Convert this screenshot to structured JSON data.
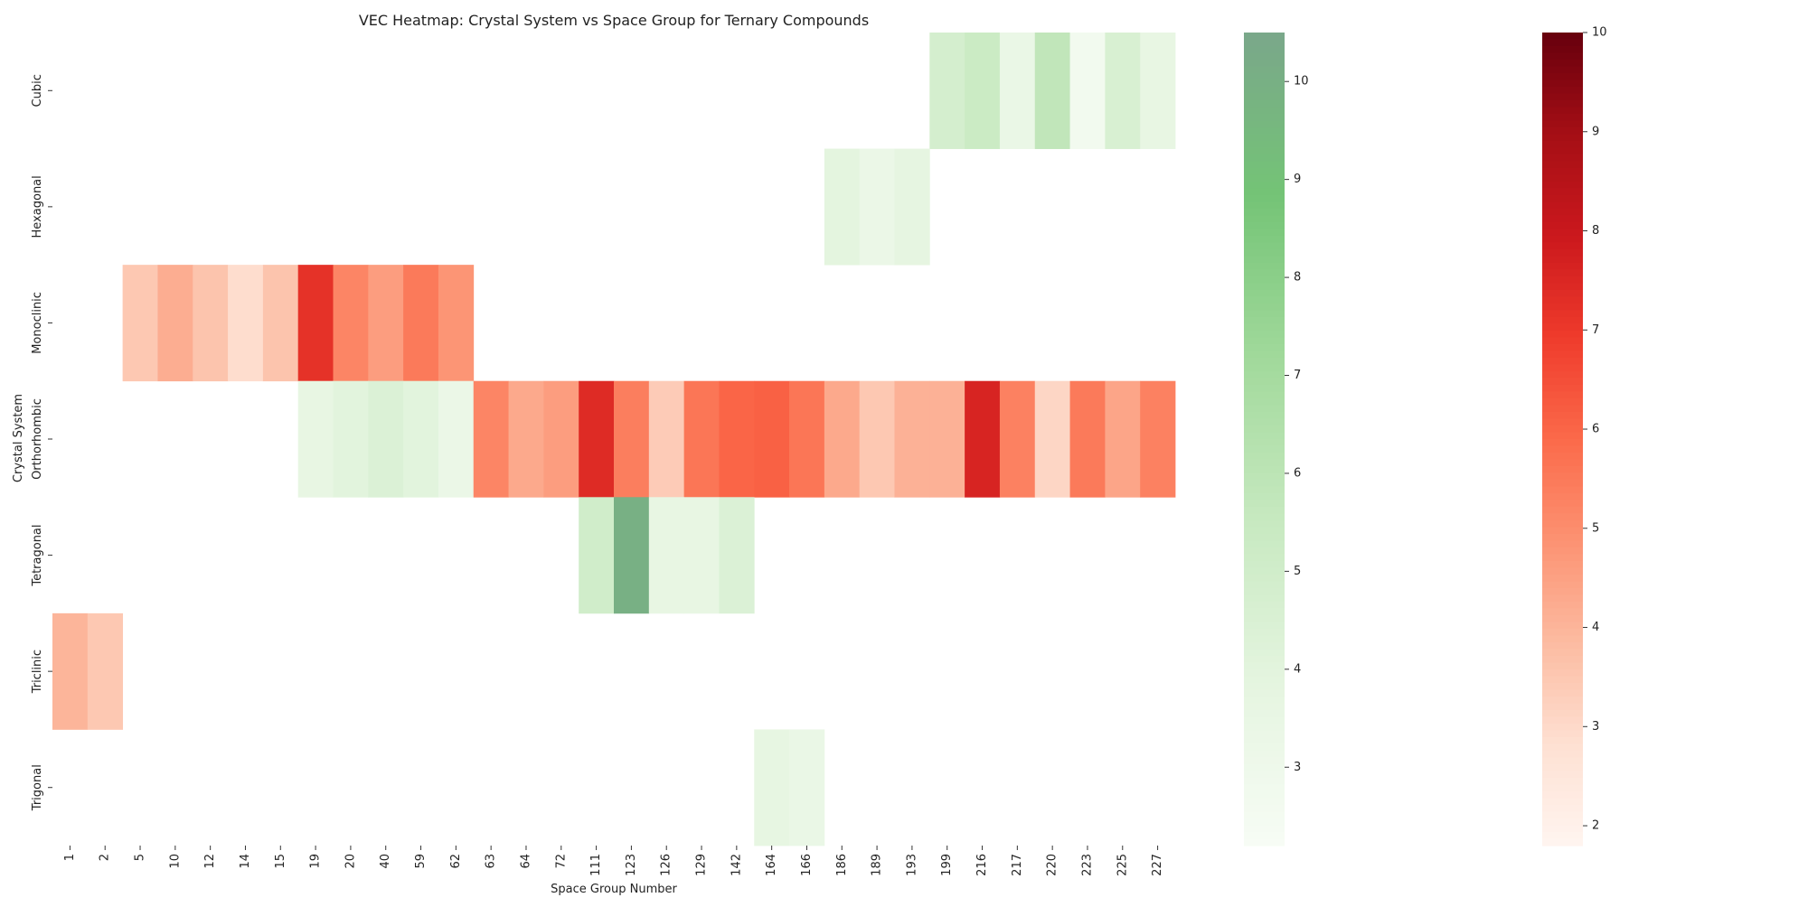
{
  "chart_data": {
    "type": "heatmap",
    "title": "VEC Heatmap: Crystal System vs Space Group for Ternary Compounds",
    "xlabel": "Space Group Number",
    "ylabel": "Crystal System",
    "x_categories": [
      "1",
      "2",
      "5",
      "10",
      "12",
      "14",
      "15",
      "19",
      "20",
      "40",
      "59",
      "62",
      "63",
      "64",
      "72",
      "111",
      "123",
      "126",
      "129",
      "142",
      "164",
      "166",
      "186",
      "189",
      "193",
      "199",
      "216",
      "217",
      "220",
      "223",
      "225",
      "227"
    ],
    "y_categories": [
      "Cubic",
      "Hexagonal",
      "Monoclinic",
      "Orthorhombic",
      "Tetragonal",
      "Triclinic",
      "Trigonal"
    ],
    "series": [
      {
        "name": "Cubic",
        "colormap": "green",
        "cells": [
          {
            "x": "199",
            "value": 4.8
          },
          {
            "x": "216",
            "value": 5.3
          },
          {
            "x": "217",
            "value": 3.4
          },
          {
            "x": "220",
            "value": 5.8
          },
          {
            "x": "223",
            "value": 2.7
          },
          {
            "x": "225",
            "value": 4.6
          },
          {
            "x": "227",
            "value": 3.6
          }
        ]
      },
      {
        "name": "Hexagonal",
        "colormap": "green",
        "cells": [
          {
            "x": "186",
            "value": 3.9
          },
          {
            "x": "189",
            "value": 3.3
          },
          {
            "x": "193",
            "value": 3.8
          }
        ]
      },
      {
        "name": "Monoclinic",
        "colormap": "red",
        "cells": [
          {
            "x": "5",
            "value": 3.5
          },
          {
            "x": "10",
            "value": 4.2
          },
          {
            "x": "12",
            "value": 3.6
          },
          {
            "x": "14",
            "value": 2.9
          },
          {
            "x": "15",
            "value": 3.6
          },
          {
            "x": "19",
            "value": 7.2
          },
          {
            "x": "20",
            "value": 5.2
          },
          {
            "x": "40",
            "value": 4.6
          },
          {
            "x": "59",
            "value": 5.5
          },
          {
            "x": "62",
            "value": 4.8
          }
        ]
      },
      {
        "name": "Orthorhombic",
        "colormap": "red",
        "cells": [
          {
            "x": "19",
            "value": 3.6,
            "colormap": "green"
          },
          {
            "x": "20",
            "value": 4.0,
            "colormap": "green"
          },
          {
            "x": "40",
            "value": 4.4,
            "colormap": "green"
          },
          {
            "x": "59",
            "value": 4.0,
            "colormap": "green"
          },
          {
            "x": "62",
            "value": 3.3,
            "colormap": "green"
          },
          {
            "x": "63",
            "value": 5.2
          },
          {
            "x": "64",
            "value": 4.3
          },
          {
            "x": "72",
            "value": 4.6
          },
          {
            "x": "111",
            "value": 7.4
          },
          {
            "x": "123",
            "value": 5.4
          },
          {
            "x": "126",
            "value": 3.4
          },
          {
            "x": "129",
            "value": 5.6
          },
          {
            "x": "142",
            "value": 6.0
          },
          {
            "x": "164",
            "value": 6.1
          },
          {
            "x": "166",
            "value": 5.6
          },
          {
            "x": "186",
            "value": 4.3
          },
          {
            "x": "189",
            "value": 3.5
          },
          {
            "x": "193",
            "value": 4.1
          },
          {
            "x": "199",
            "value": 4.1
          },
          {
            "x": "216",
            "value": 7.6
          },
          {
            "x": "217",
            "value": 5.3
          },
          {
            "x": "220",
            "value": 3.1
          },
          {
            "x": "223",
            "value": 5.5
          },
          {
            "x": "225",
            "value": 4.4
          },
          {
            "x": "227",
            "value": 5.3
          }
        ]
      },
      {
        "name": "Tetragonal",
        "colormap": "green",
        "cells": [
          {
            "x": "111",
            "value": 5.0
          },
          {
            "x": "123",
            "value": 10.0
          },
          {
            "x": "126",
            "value": 3.6
          },
          {
            "x": "129",
            "value": 3.6
          },
          {
            "x": "142",
            "value": 4.4
          }
        ]
      },
      {
        "name": "Triclinic",
        "colormap": "red",
        "cells": [
          {
            "x": "1",
            "value": 4.0
          },
          {
            "x": "2",
            "value": 3.5
          }
        ]
      },
      {
        "name": "Trigonal",
        "colormap": "green",
        "cells": [
          {
            "x": "164",
            "value": 3.7
          },
          {
            "x": "166",
            "value": 3.4
          }
        ]
      }
    ],
    "colorbars": [
      {
        "name": "green",
        "vmin": 2.2,
        "vmax": 10.5,
        "ticks": [
          3,
          4,
          5,
          6,
          7,
          8,
          9,
          10
        ]
      },
      {
        "name": "red",
        "vmin": 1.8,
        "vmax": 10.0,
        "ticks": [
          2,
          3,
          4,
          5,
          6,
          7,
          8,
          9,
          10
        ]
      }
    ],
    "colors": {
      "green_scale": [
        "#f7fcf5",
        "#e5f5e0",
        "#c7e9c0",
        "#a1d99b",
        "#74c476",
        "#7aa78a"
      ],
      "red_scale": [
        "#fff5f0",
        "#fee0d2",
        "#fcbba1",
        "#fc9272",
        "#fb6a4a",
        "#ef3b2c",
        "#cb181d",
        "#a50f15",
        "#67000d"
      ]
    },
    "grid": false,
    "legend": "none"
  }
}
